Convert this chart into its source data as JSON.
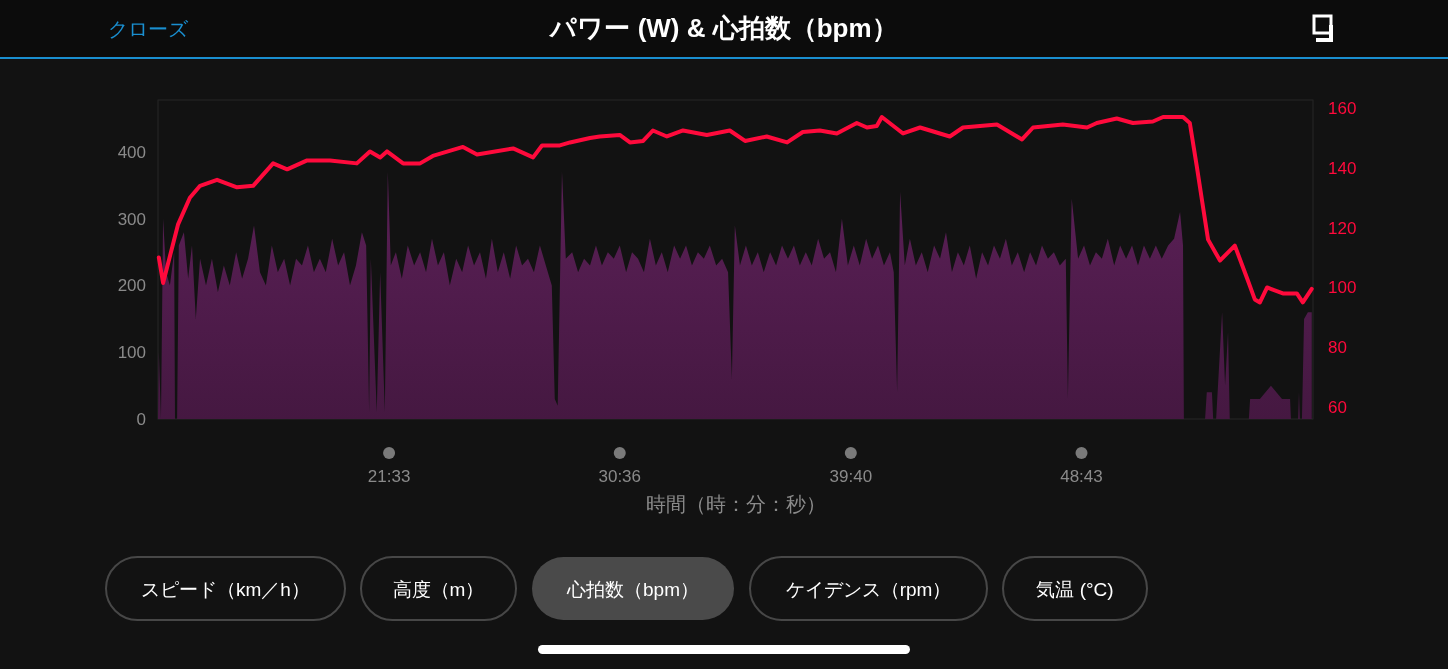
{
  "chart_data": {
    "type": "area",
    "title": "パワー (W) & 心拍数（bpm）",
    "xlabel": "時間（時：分：秒）",
    "xlim": [
      749,
      3468
    ],
    "xticks": [
      {
        "value": 1293,
        "label": "21:33"
      },
      {
        "value": 1836,
        "label": "30:36"
      },
      {
        "value": 2380,
        "label": "39:40"
      },
      {
        "value": 2923,
        "label": "48:43"
      }
    ],
    "ylim": [
      0,
      478
    ],
    "yticks": [
      0,
      100,
      200,
      300,
      400
    ],
    "y2lim": [
      56,
      162.7
    ],
    "y2ticks": [
      60,
      80,
      100,
      120,
      140,
      160
    ],
    "series": [
      {
        "color": "#521d4e",
        "x": [
          749,
          751,
          756,
          761,
          768,
          777,
          787,
          789,
          794,
          798,
          810,
          820,
          829,
          838,
          848,
          862,
          876,
          890,
          904,
          918,
          933,
          947,
          961,
          975,
          989,
          1003,
          1017,
          1031,
          1046,
          1060,
          1074,
          1088,
          1102,
          1116,
          1130,
          1144,
          1159,
          1173,
          1187,
          1201,
          1215,
          1229,
          1239,
          1246,
          1250,
          1264,
          1272,
          1283,
          1290,
          1297,
          1309,
          1323,
          1337,
          1352,
          1366,
          1380,
          1394,
          1408,
          1422,
          1436,
          1451,
          1465,
          1479,
          1493,
          1507,
          1521,
          1535,
          1549,
          1563,
          1578,
          1592,
          1606,
          1620,
          1634,
          1648,
          1662,
          1676,
          1683,
          1690,
          1700,
          1709,
          1724,
          1738,
          1752,
          1766,
          1780,
          1794,
          1808,
          1822,
          1836,
          1851,
          1865,
          1879,
          1893,
          1907,
          1921,
          1935,
          1949,
          1964,
          1978,
          1992,
          2006,
          2020,
          2034,
          2048,
          2063,
          2077,
          2091,
          2100,
          2107,
          2119,
          2133,
          2147,
          2161,
          2175,
          2190,
          2204,
          2218,
          2232,
          2246,
          2260,
          2274,
          2288,
          2303,
          2317,
          2331,
          2345,
          2359,
          2373,
          2387,
          2401,
          2416,
          2430,
          2444,
          2458,
          2472,
          2481,
          2489,
          2496,
          2507,
          2519,
          2533,
          2547,
          2561,
          2576,
          2590,
          2604,
          2618,
          2632,
          2646,
          2660,
          2675,
          2689,
          2703,
          2717,
          2731,
          2745,
          2759,
          2773,
          2788,
          2802,
          2816,
          2830,
          2844,
          2858,
          2872,
          2886,
          2891,
          2900,
          2915,
          2929,
          2943,
          2957,
          2971,
          2985,
          3000,
          3014,
          3028,
          3042,
          3056,
          3070,
          3084,
          3098,
          3112,
          3127,
          3141,
          3155,
          3162,
          3164,
          3214,
          3218,
          3230,
          3233,
          3240,
          3254,
          3261,
          3268,
          3272,
          3317,
          3320,
          3343,
          3369,
          3395,
          3414,
          3416,
          3433,
          3435,
          3437,
          3442,
          3447,
          3456,
          3465
        ],
        "values": [
          0,
          100,
          0,
          300,
          220,
          200,
          250,
          0,
          0,
          260,
          280,
          210,
          260,
          150,
          240,
          200,
          240,
          190,
          230,
          200,
          250,
          210,
          240,
          290,
          220,
          200,
          260,
          220,
          240,
          200,
          240,
          230,
          260,
          220,
          240,
          220,
          270,
          230,
          250,
          200,
          230,
          280,
          260,
          10,
          240,
          10,
          220,
          10,
          370,
          230,
          250,
          210,
          260,
          230,
          250,
          220,
          270,
          230,
          250,
          200,
          240,
          220,
          260,
          230,
          250,
          210,
          270,
          220,
          250,
          210,
          260,
          230,
          240,
          220,
          260,
          230,
          200,
          30,
          20,
          370,
          240,
          250,
          220,
          240,
          230,
          260,
          230,
          250,
          240,
          260,
          220,
          250,
          240,
          220,
          270,
          230,
          250,
          220,
          260,
          240,
          260,
          230,
          250,
          240,
          260,
          230,
          240,
          220,
          60,
          290,
          230,
          260,
          230,
          250,
          220,
          250,
          230,
          260,
          240,
          260,
          230,
          250,
          230,
          270,
          240,
          250,
          220,
          300,
          230,
          260,
          230,
          270,
          240,
          260,
          230,
          250,
          220,
          40,
          340,
          230,
          270,
          230,
          250,
          220,
          260,
          240,
          280,
          220,
          250,
          230,
          260,
          210,
          250,
          230,
          260,
          240,
          270,
          230,
          250,
          220,
          250,
          230,
          260,
          240,
          250,
          230,
          240,
          30,
          330,
          240,
          260,
          230,
          250,
          240,
          270,
          230,
          260,
          240,
          260,
          230,
          260,
          240,
          260,
          240,
          260,
          270,
          310,
          260,
          0,
          0,
          40,
          40,
          0,
          0,
          160,
          50,
          130,
          0,
          0,
          30,
          30,
          50,
          30,
          30,
          0,
          0,
          40,
          0,
          0,
          150,
          160,
          160
        ]
      },
      {
        "type": "line",
        "axis": "y2",
        "color": "#ff0a3c",
        "x": [
          751,
          761,
          796,
          824,
          848,
          888,
          935,
          973,
          1020,
          1053,
          1100,
          1154,
          1217,
          1248,
          1272,
          1288,
          1326,
          1366,
          1396,
          1467,
          1500,
          1585,
          1632,
          1653,
          1695,
          1719,
          1766,
          1789,
          1836,
          1860,
          1891,
          1914,
          1947,
          1985,
          2041,
          2095,
          2131,
          2182,
          2230,
          2267,
          2307,
          2347,
          2394,
          2418,
          2441,
          2453,
          2503,
          2543,
          2613,
          2644,
          2724,
          2783,
          2809,
          2879,
          2936,
          2959,
          3006,
          3044,
          3091,
          3115,
          3162,
          3178,
          3195,
          3209,
          3221,
          3249,
          3284,
          3313,
          3331,
          3343,
          3360,
          3397,
          3430,
          3444,
          3465
        ],
        "values": [
          110,
          101.5,
          121,
          130,
          134,
          136,
          133.5,
          134,
          141.5,
          139.5,
          142.5,
          142.5,
          141.5,
          145.5,
          143.5,
          145.5,
          141.5,
          141.5,
          144,
          147,
          144.5,
          146.5,
          143.5,
          147.5,
          147.5,
          148.5,
          150,
          150.5,
          151,
          148.5,
          149,
          152.5,
          150.5,
          152.5,
          151,
          152.5,
          149,
          150.5,
          148.5,
          152,
          152.5,
          151.5,
          155,
          153.5,
          154,
          157,
          151.5,
          153.5,
          150.5,
          153.5,
          154.5,
          149.5,
          153.5,
          154.5,
          153.5,
          155,
          156.5,
          155,
          155.5,
          157,
          157,
          155,
          140,
          127,
          116,
          109,
          114,
          103,
          96,
          95,
          100,
          98,
          98,
          95,
          99.5
        ]
      }
    ],
    "annotations": [
      "クローズ",
      "スピード（km／h）",
      "高度（m）",
      "心拍数（bpm）",
      "ケイデンス（rpm）",
      "気温 (°C)"
    ]
  }
}
